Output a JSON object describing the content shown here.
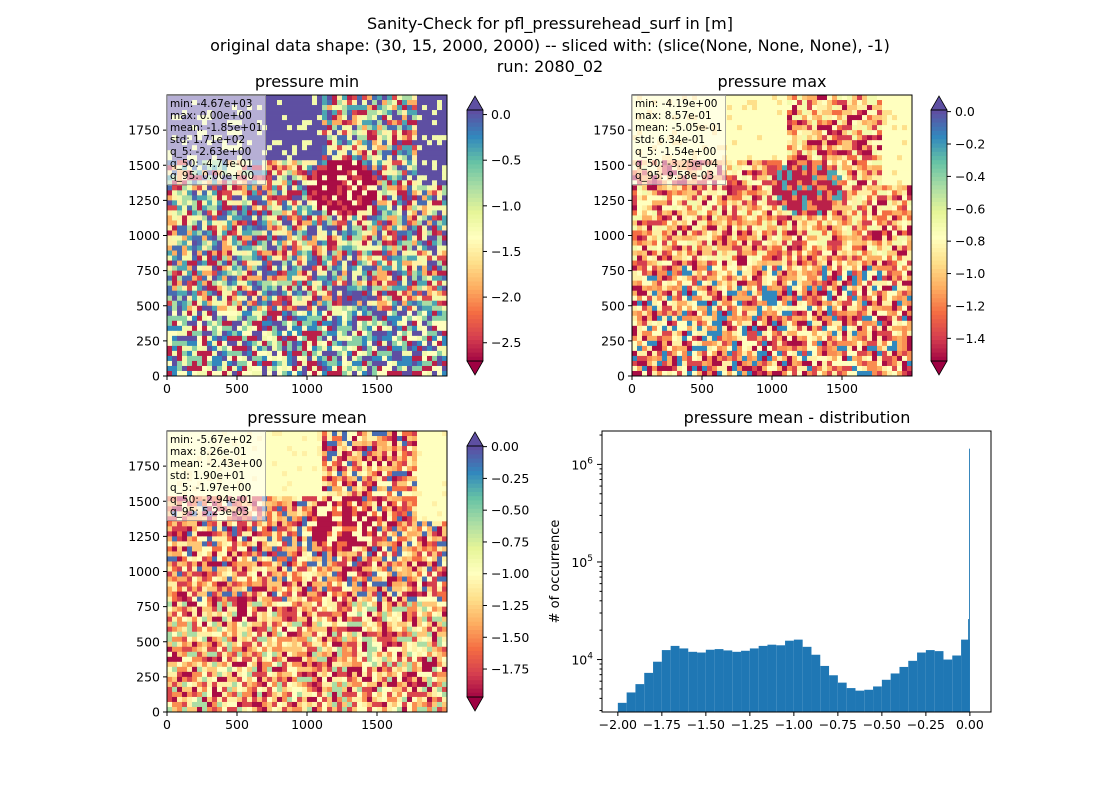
{
  "figure": {
    "suptitle_line1": "Sanity-Check for pfl_pressurehead_surf in [m]",
    "suptitle_line2": "original data shape: (30, 15, 2000, 2000) -- sliced with: (slice(None, None, None), -1)",
    "suptitle_line3": "run: 2080_02"
  },
  "colors": {
    "spectral": [
      "#9e0142",
      "#d53e4f",
      "#f46d43",
      "#fdae61",
      "#fee08b",
      "#ffffbf",
      "#e6f598",
      "#abdda4",
      "#66c2a5",
      "#3288bd",
      "#5e4fa2"
    ],
    "hist_bar": "#1f77b4"
  },
  "chart_data": [
    {
      "type": "heatmap",
      "title": "pressure min",
      "xticks": [
        "0",
        "500",
        "1000",
        "1500"
      ],
      "yticks": [
        "0",
        "250",
        "500",
        "750",
        "1000",
        "1250",
        "1500",
        "1750"
      ],
      "xlim": [
        0,
        2000
      ],
      "ylim": [
        0,
        2000
      ],
      "colorbar": {
        "ticks": [
          "0.0",
          "−0.5",
          "−1.0",
          "−1.5",
          "−2.0",
          "−2.5"
        ],
        "tick_values": [
          0,
          -0.5,
          -1.0,
          -1.5,
          -2.0,
          -2.5
        ],
        "vmin": -2.7,
        "vmax": 0.05,
        "extend": "both"
      },
      "stats": [
        "min: -4.67e+03",
        "max: 0.00e+00",
        "mean: -1.85e+01",
        "std: 1.71e+02",
        "q_5: -2.63e+00",
        "q_50: -4.74e-01",
        "q_95: 0.00e+00"
      ]
    },
    {
      "type": "heatmap",
      "title": "pressure max",
      "xticks": [
        "0",
        "500",
        "1000",
        "1500"
      ],
      "yticks": [
        "0",
        "250",
        "500",
        "750",
        "1000",
        "1250",
        "1500",
        "1750"
      ],
      "xlim": [
        0,
        2000
      ],
      "ylim": [
        0,
        2000
      ],
      "colorbar": {
        "ticks": [
          "0.0",
          "−0.2",
          "−0.4",
          "−0.6",
          "−0.8",
          "−1.0",
          "−1.2",
          "−1.4"
        ],
        "tick_values": [
          0,
          -0.2,
          -0.4,
          -0.6,
          -0.8,
          -1.0,
          -1.2,
          -1.4
        ],
        "vmin": -1.54,
        "vmax": 0.01,
        "extend": "both"
      },
      "stats": [
        "min: -4.19e+00",
        "max: 8.57e-01",
        "mean: -5.05e-01",
        "std: 6.34e-01",
        "q_5: -1.54e+00",
        "q_50: -3.25e-04",
        "q_95: 9.58e-03"
      ]
    },
    {
      "type": "heatmap",
      "title": "pressure mean",
      "xticks": [
        "0",
        "500",
        "1000",
        "1500"
      ],
      "yticks": [
        "0",
        "250",
        "500",
        "750",
        "1000",
        "1250",
        "1500",
        "1750"
      ],
      "xlim": [
        0,
        2000
      ],
      "ylim": [
        0,
        2000
      ],
      "colorbar": {
        "ticks": [
          "0.00",
          "−0.25",
          "−0.50",
          "−0.75",
          "−1.00",
          "−1.25",
          "−1.50",
          "−1.75"
        ],
        "tick_values": [
          0,
          -0.25,
          -0.5,
          -0.75,
          -1.0,
          -1.25,
          -1.5,
          -1.75
        ],
        "vmin": -1.97,
        "vmax": 0.005,
        "extend": "both"
      },
      "stats": [
        "min: -5.67e+02",
        "max: 8.26e-01",
        "mean: -2.43e+00",
        "std: 1.90e+01",
        "q_5: -1.97e+00",
        "q_50: -2.94e-01",
        "q_95: 5.23e-03"
      ]
    },
    {
      "type": "bar",
      "title": "pressure mean - distribution",
      "ylabel": "# of occurrence",
      "xlabel": "",
      "yscale": "log",
      "xlim": [
        -2.09,
        0.12
      ],
      "ylim": [
        2900,
        2200000
      ],
      "xticks": [
        "−2.00",
        "−1.75",
        "−1.50",
        "−1.25",
        "−1.00",
        "−0.75",
        "−0.50",
        "−0.25",
        "0.00"
      ],
      "xtick_values": [
        -2.0,
        -1.75,
        -1.5,
        -1.25,
        -1.0,
        -0.75,
        -0.5,
        -0.25,
        0.0
      ],
      "ytick_values": [
        10000,
        100000,
        1000000
      ],
      "x": [
        -1.975,
        -1.925,
        -1.875,
        -1.825,
        -1.775,
        -1.725,
        -1.675,
        -1.625,
        -1.575,
        -1.525,
        -1.475,
        -1.425,
        -1.375,
        -1.325,
        -1.275,
        -1.225,
        -1.175,
        -1.125,
        -1.075,
        -1.025,
        -0.975,
        -0.925,
        -0.875,
        -0.825,
        -0.775,
        -0.725,
        -0.675,
        -0.625,
        -0.575,
        -0.525,
        -0.475,
        -0.425,
        -0.375,
        -0.325,
        -0.275,
        -0.225,
        -0.175,
        -0.125,
        -0.075,
        -0.025,
        -0.0075,
        -0.0025
      ],
      "values": [
        3600,
        4600,
        5600,
        7300,
        9500,
        12500,
        13800,
        13000,
        12000,
        11800,
        12600,
        12800,
        12400,
        12000,
        12300,
        13000,
        13800,
        14200,
        14000,
        15600,
        16000,
        13500,
        11200,
        8600,
        6900,
        5800,
        5100,
        4800,
        4900,
        5300,
        6200,
        7200,
        8400,
        9700,
        11800,
        12500,
        12200,
        10000,
        11000,
        16000,
        26000,
        1450000
      ]
    }
  ]
}
